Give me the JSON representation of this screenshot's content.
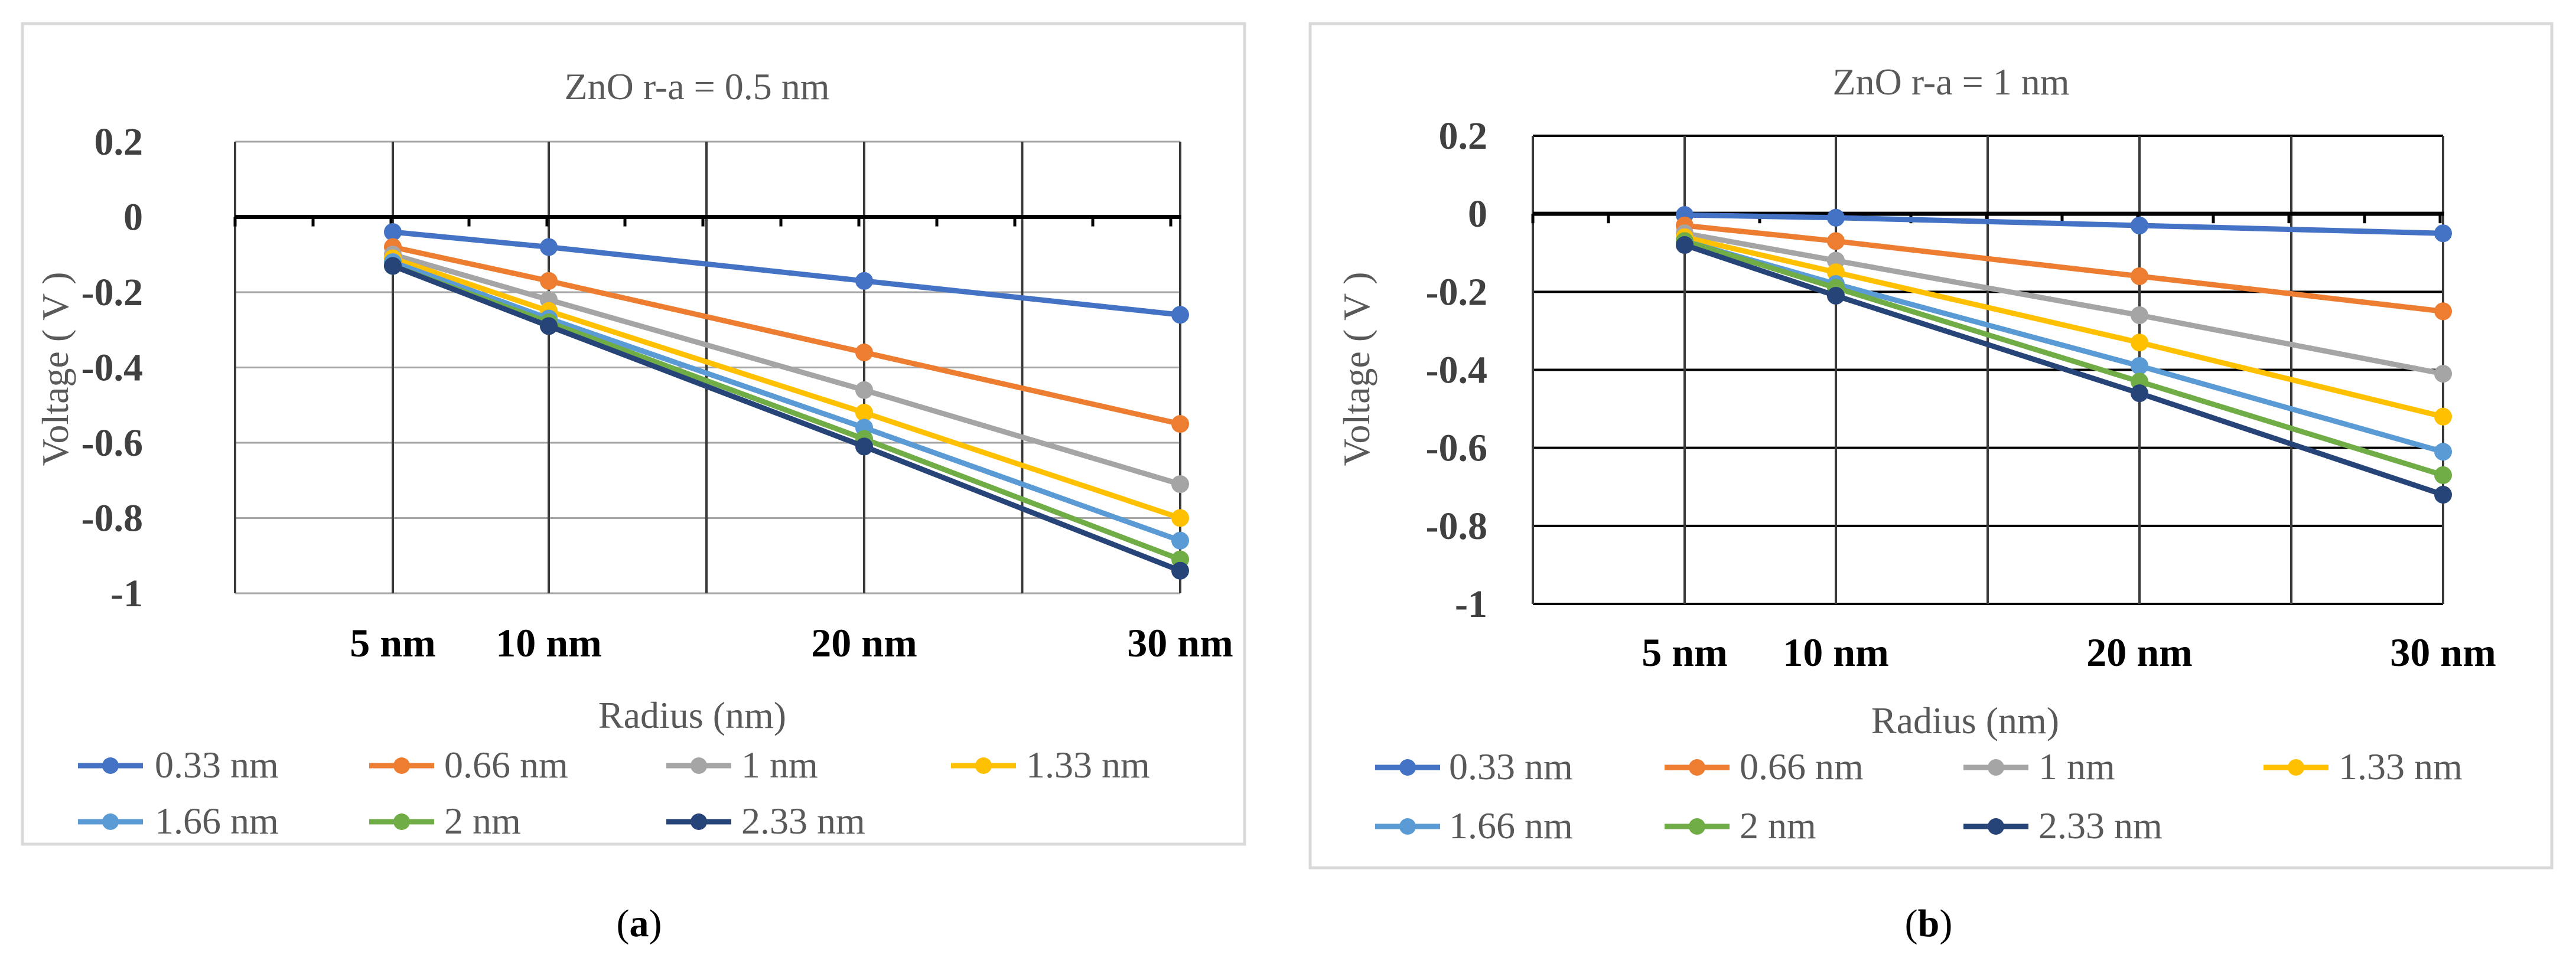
{
  "chart_data": [
    {
      "type": "line",
      "title": "ZnO r-a =  0.5 nm",
      "xlabel": "Radius (nm)",
      "ylabel": "Voltage ( V )",
      "categories": [
        "5 nm",
        "10 nm",
        "20 nm",
        "30 nm"
      ],
      "x": [
        5,
        10,
        20,
        30
      ],
      "ylim": [
        -1,
        0.2
      ],
      "yticks": [
        0.2,
        0,
        -0.2,
        -0.4,
        -0.6,
        -0.8,
        -1
      ],
      "ytick_labels": [
        "0.2",
        "0",
        "-0.2",
        "-0.4",
        "-0.6",
        "-0.8",
        "-1"
      ],
      "grid": true,
      "legend": "bottom",
      "caption_letter": "a",
      "series": [
        {
          "name": "0.33 nm",
          "color": "#4472C4",
          "values": [
            -0.04,
            -0.08,
            -0.17,
            -0.26
          ]
        },
        {
          "name": "0.66 nm",
          "color": "#ED7D31",
          "values": [
            -0.08,
            -0.17,
            -0.36,
            -0.55
          ]
        },
        {
          "name": "1 nm",
          "color": "#A5A5A5",
          "values": [
            -0.1,
            -0.22,
            -0.46,
            -0.71
          ]
        },
        {
          "name": "1.33 nm",
          "color": "#FFC000",
          "values": [
            -0.11,
            -0.25,
            -0.52,
            -0.8
          ]
        },
        {
          "name": "1.66 nm",
          "color": "#5B9BD5",
          "values": [
            -0.12,
            -0.27,
            -0.56,
            -0.86
          ]
        },
        {
          "name": "2 nm",
          "color": "#70AD47",
          "values": [
            -0.13,
            -0.28,
            -0.59,
            -0.91
          ]
        },
        {
          "name": "2.33 nm",
          "color": "#264478",
          "values": [
            -0.13,
            -0.29,
            -0.61,
            -0.94
          ]
        }
      ]
    },
    {
      "type": "line",
      "title": "ZnO r-a =  1 nm",
      "xlabel": "Radius (nm)",
      "ylabel": "Voltage ( V )",
      "categories": [
        "5 nm",
        "10 nm",
        "20 nm",
        "30 nm"
      ],
      "x": [
        5,
        10,
        20,
        30
      ],
      "ylim": [
        -1,
        0.2
      ],
      "yticks": [
        0.2,
        0,
        -0.2,
        -0.4,
        -0.6,
        -0.8,
        -1
      ],
      "ytick_labels": [
        "0.2",
        "0",
        "-0.2",
        "-0.4",
        "-0.6",
        "-0.8",
        "-1"
      ],
      "grid": true,
      "legend": "bottom",
      "caption_letter": "b",
      "series": [
        {
          "name": "0.33 nm",
          "color": "#4472C4",
          "values": [
            -0.003,
            -0.01,
            -0.03,
            -0.05
          ]
        },
        {
          "name": "0.66 nm",
          "color": "#ED7D31",
          "values": [
            -0.03,
            -0.07,
            -0.16,
            -0.25
          ]
        },
        {
          "name": "1 nm",
          "color": "#A5A5A5",
          "values": [
            -0.05,
            -0.12,
            -0.26,
            -0.41
          ]
        },
        {
          "name": "1.33 nm",
          "color": "#FFC000",
          "values": [
            -0.06,
            -0.15,
            -0.33,
            -0.52
          ]
        },
        {
          "name": "1.66 nm",
          "color": "#5B9BD5",
          "values": [
            -0.07,
            -0.18,
            -0.39,
            -0.61
          ]
        },
        {
          "name": "2 nm",
          "color": "#70AD47",
          "values": [
            -0.07,
            -0.19,
            -0.43,
            -0.67
          ]
        },
        {
          "name": "2.33 nm",
          "color": "#264478",
          "values": [
            -0.08,
            -0.21,
            -0.46,
            -0.72
          ]
        }
      ]
    }
  ]
}
